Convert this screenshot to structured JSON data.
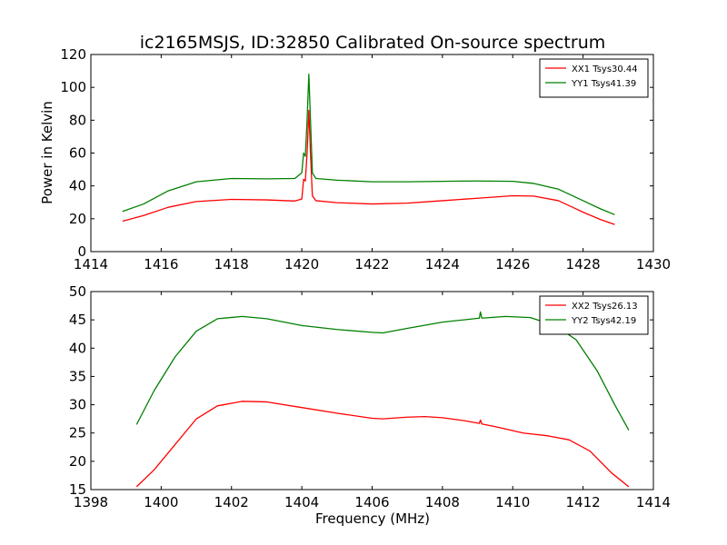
{
  "figure": {
    "title": "ic2165MSJS, ID:32850 Calibrated On-source spectrum",
    "xlabel": "Frequency (MHz)",
    "ylabel": "Power in Kelvin"
  },
  "chart_data": [
    {
      "type": "line",
      "title": "ic2165MSJS, ID:32850 Calibrated On-source spectrum",
      "xlabel": "",
      "ylabel": "Power in Kelvin",
      "xlim": [
        1414,
        1430
      ],
      "ylim": [
        0,
        120
      ],
      "xticks": [
        1414,
        1416,
        1418,
        1420,
        1422,
        1424,
        1426,
        1428,
        1430
      ],
      "yticks": [
        0,
        20,
        40,
        60,
        80,
        100,
        120
      ],
      "grid": false,
      "legend_position": "top-right",
      "series": [
        {
          "name": "XX1 Tsys30.44",
          "color": "#ff0000",
          "points": [
            [
              1414.9,
              18.5
            ],
            [
              1415.5,
              22
            ],
            [
              1416.2,
              27
            ],
            [
              1417,
              30.5
            ],
            [
              1418,
              31.8
            ],
            [
              1419,
              31.5
            ],
            [
              1419.8,
              30.8
            ],
            [
              1420.0,
              32
            ],
            [
              1420.05,
              44
            ],
            [
              1420.1,
              43
            ],
            [
              1420.15,
              60
            ],
            [
              1420.2,
              86
            ],
            [
              1420.25,
              58
            ],
            [
              1420.3,
              34
            ],
            [
              1420.4,
              31
            ],
            [
              1421,
              29.8
            ],
            [
              1422,
              29
            ],
            [
              1423,
              29.5
            ],
            [
              1424,
              31
            ],
            [
              1425,
              32.5
            ],
            [
              1426,
              34
            ],
            [
              1426.6,
              33.8
            ],
            [
              1427.3,
              31
            ],
            [
              1428,
              24
            ],
            [
              1428.5,
              19.5
            ],
            [
              1428.9,
              16.5
            ]
          ]
        },
        {
          "name": "YY1 Tsys41.39",
          "color": "#008000",
          "points": [
            [
              1414.9,
              24.5
            ],
            [
              1415.5,
              29
            ],
            [
              1416.2,
              37
            ],
            [
              1417,
              42.5
            ],
            [
              1418,
              44.5
            ],
            [
              1419,
              44.3
            ],
            [
              1419.8,
              44.5
            ],
            [
              1420.0,
              48
            ],
            [
              1420.05,
              60
            ],
            [
              1420.1,
              58
            ],
            [
              1420.15,
              80
            ],
            [
              1420.2,
              108
            ],
            [
              1420.25,
              78
            ],
            [
              1420.3,
              48
            ],
            [
              1420.4,
              44.5
            ],
            [
              1421,
              43.5
            ],
            [
              1422,
              42.5
            ],
            [
              1423,
              42.5
            ],
            [
              1424,
              42.8
            ],
            [
              1425,
              43
            ],
            [
              1426,
              42.8
            ],
            [
              1426.6,
              41.5
            ],
            [
              1427.3,
              38
            ],
            [
              1428,
              31
            ],
            [
              1428.5,
              26
            ],
            [
              1428.9,
              22.5
            ]
          ]
        }
      ]
    },
    {
      "type": "line",
      "title": "",
      "xlabel": "Frequency (MHz)",
      "ylabel": "",
      "xlim": [
        1398,
        1414
      ],
      "ylim": [
        15,
        50
      ],
      "xticks": [
        1398,
        1400,
        1402,
        1404,
        1406,
        1408,
        1410,
        1412,
        1414
      ],
      "yticks": [
        15,
        20,
        25,
        30,
        35,
        40,
        45,
        50
      ],
      "grid": false,
      "legend_position": "top-right",
      "series": [
        {
          "name": "XX2 Tsys26.13",
          "color": "#ff0000",
          "points": [
            [
              1399.3,
              15.5
            ],
            [
              1399.8,
              18.5
            ],
            [
              1400.4,
              23
            ],
            [
              1401,
              27.5
            ],
            [
              1401.6,
              29.8
            ],
            [
              1402.3,
              30.6
            ],
            [
              1403,
              30.5
            ],
            [
              1404,
              29.5
            ],
            [
              1405,
              28.5
            ],
            [
              1406,
              27.6
            ],
            [
              1406.3,
              27.5
            ],
            [
              1407,
              27.8
            ],
            [
              1407.5,
              27.9
            ],
            [
              1408,
              27.7
            ],
            [
              1408.6,
              27.2
            ],
            [
              1409.05,
              26.7
            ],
            [
              1409.08,
              27.3
            ],
            [
              1409.12,
              26.6
            ],
            [
              1409.6,
              26
            ],
            [
              1410.3,
              25
            ],
            [
              1411,
              24.5
            ],
            [
              1411.6,
              23.8
            ],
            [
              1412.2,
              21.8
            ],
            [
              1412.8,
              18
            ],
            [
              1413.3,
              15.5
            ]
          ]
        },
        {
          "name": "YY2 Tsys42.19",
          "color": "#008000",
          "points": [
            [
              1399.3,
              26.5
            ],
            [
              1399.8,
              32.5
            ],
            [
              1400.4,
              38.5
            ],
            [
              1401,
              43
            ],
            [
              1401.6,
              45.2
            ],
            [
              1402.3,
              45.6
            ],
            [
              1403,
              45.2
            ],
            [
              1404,
              44
            ],
            [
              1405,
              43.3
            ],
            [
              1406,
              42.8
            ],
            [
              1406.3,
              42.7
            ],
            [
              1407,
              43.5
            ],
            [
              1408,
              44.6
            ],
            [
              1409.05,
              45.3
            ],
            [
              1409.08,
              46.4
            ],
            [
              1409.12,
              45.3
            ],
            [
              1409.8,
              45.6
            ],
            [
              1410.5,
              45.4
            ],
            [
              1411.2,
              44
            ],
            [
              1411.8,
              41.5
            ],
            [
              1412.4,
              36
            ],
            [
              1412.9,
              30
            ],
            [
              1413.3,
              25.5
            ]
          ]
        }
      ]
    }
  ]
}
